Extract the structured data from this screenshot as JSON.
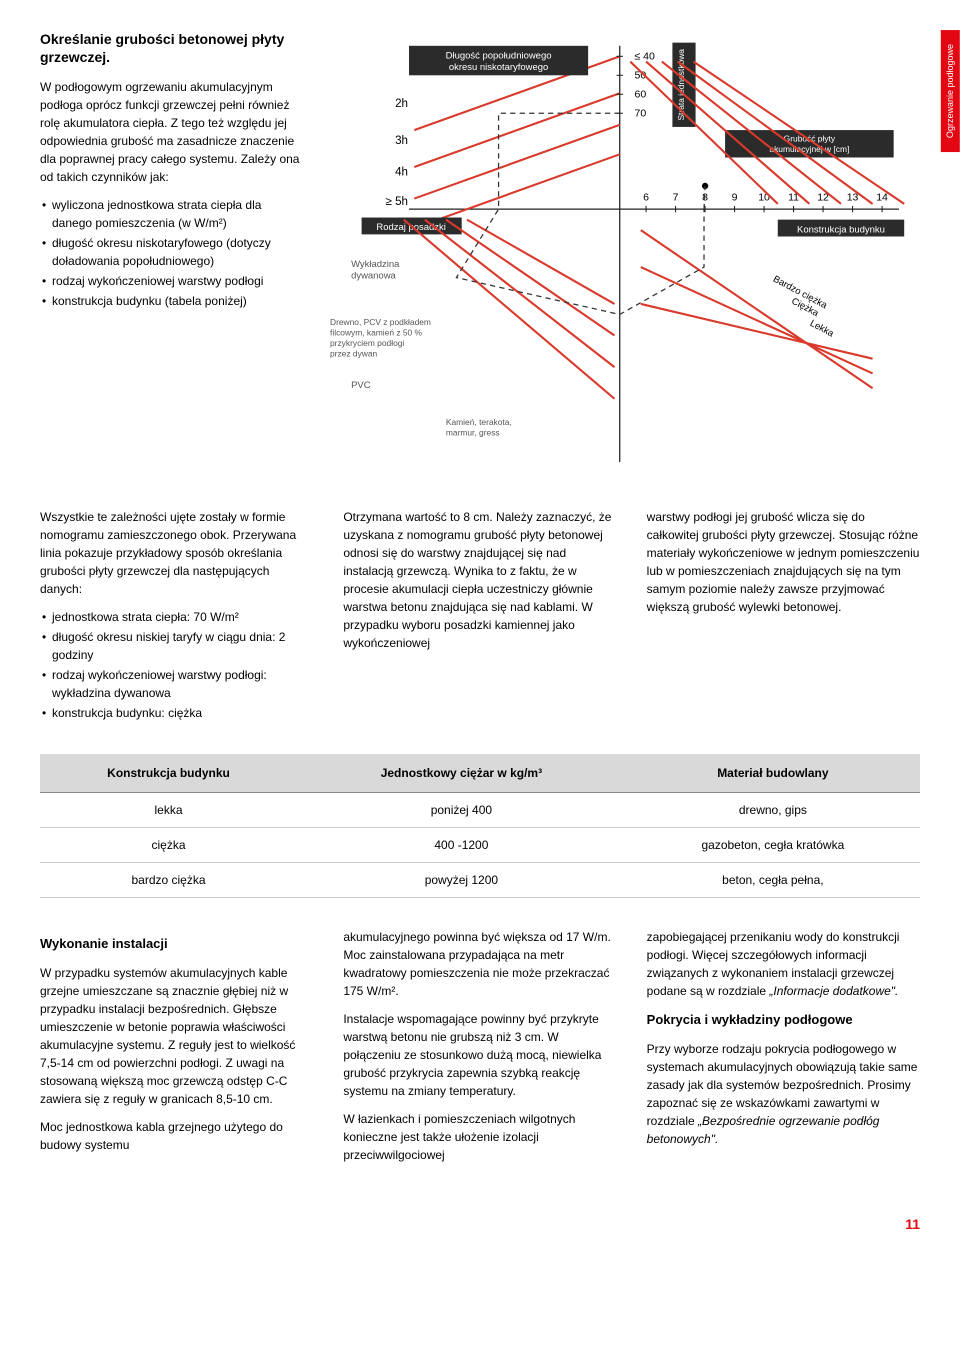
{
  "sideTab": "Ogrzewanie podłogowe",
  "section1": {
    "heading": "Określanie grubości betonowej płyty grzewczej.",
    "p1": "W podłogowym ogrzewaniu akumulacyjnym podłoga oprócz funkcji grzewczej pełni również rolę akumulatora ciepła. Z tego też względu jej odpowiednia grubość ma zasadnicze znaczenie dla poprawnej pracy całego systemu. Zależy ona od takich czynników jak:",
    "bullets1": [
      "wyliczona jednostkowa strata ciepła dla danego pomieszczenia (w W/m²)",
      "długość okresu niskotaryfowego (dotyczy doładowania popołudniowego)",
      "rodzaj wykończeniowej warstwy podłogi",
      "konstrukcja budynku (tabela poniżej)"
    ],
    "p2": "Wszystkie te zależności ujęte zostały w formie nomogramu zamieszczonego obok. Przerywana linia pokazuje przykładowy sposób określania grubości płyty grzewczej dla następujących danych:",
    "bullets2": [
      "jednostkowa strata ciepła: 70 W/m²",
      "długość okresu niskiej taryfy w ciągu dnia: 2 godziny",
      "rodzaj wykończeniowej warstwy podłogi: wykładzina dywanowa",
      "konstrukcja budynku: ciężka"
    ]
  },
  "midCol2": "Otrzymana wartość to 8 cm. Należy zaznaczyć, że uzyskana z nomogramu grubość płyty betonowej odnosi się do warstwy znajdującej się nad instalacją grzewczą. Wynika to z faktu, że w procesie akumulacji ciepła uczestniczy głównie warstwa betonu znajdująca się nad kablami. W przypadku wyboru posadzki kamiennej jako wykończeniowej",
  "midCol3": "warstwy podłogi jej grubość wlicza się do całkowitej grubości płyty grzewczej. Stosując różne materiały wykończeniowe w jednym pomieszczeniu lub w pomieszczeniach znajdujących się na tym samym poziomie należy zawsze przyjmować większą grubość wylewki betonowej.",
  "table": {
    "headers": [
      "Konstrukcja budynku",
      "Jednostkowy ciężar w kg/m³",
      "Materiał budowlany"
    ],
    "rows": [
      [
        "lekka",
        "poniżej 400",
        "drewno, gips"
      ],
      [
        "ciężka",
        "400 -1200",
        "gazobeton, cegła kratówka"
      ],
      [
        "bardzo ciężka",
        "powyżej 1200",
        "beton, cegła pełna,"
      ]
    ]
  },
  "lower": {
    "col1_h": "Wykonanie instalacji",
    "col1_p1": "W przypadku systemów akumulacyjnych kable grzejne umieszczane są znacznie głębiej niż w przypadku instalacji bezpośrednich. Głębsze umieszczenie w betonie poprawia właściwości akumulacyjne systemu. Z reguły jest to wielkość 7,5-14 cm od powierzchni podłogi. Z uwagi na stosowaną większą moc grzewczą odstęp C-C zawiera się z reguły w granicach 8,5-10 cm.",
    "col1_p2": "Moc jednostkowa kabla grzejnego użytego do budowy systemu",
    "col2_p1": "akumulacyjnego powinna być większa od 17 W/m. Moc zainstalowana przypadająca na metr kwadratowy pomieszczenia nie może przekraczać 175 W/m².",
    "col2_p2": "Instalacje wspomagające powinny być przykryte warstwą betonu nie grubszą niż 3 cm. W połączeniu ze stosunkowo dużą mocą, niewielka grubość przykrycia zapewnia szybką reakcję systemu na zmiany temperatury.",
    "col2_p3": "W łazienkach i pomieszczeniach wilgotnych konieczne jest także ułożenie izolacji przeciwwilgociowej",
    "col3_p1_a": "zapobiegającej przenikaniu wody do konstrukcji podłogi. Więcej szczegółowych informacji związanych z wykonaniem instalacji grzewczej podane są w rozdziale ",
    "col3_p1_b": "„Informacje dodatkowe\".",
    "col3_h": "Pokrycia i wykładziny podłogowe",
    "col3_p2_a": "Przy wyborze rodzaju pokrycia podłogowego w systemach akumulacyjnych obowiązują takie same zasady jak dla systemów bezpośrednich. Prosimy zapoznać się ze wskazówkami zawartymi w rozdziale ",
    "col3_p2_b": "„Bezpośrednie ogrzewanie podłóg betonowych\"."
  },
  "nomogram": {
    "labels": {
      "box1": "Długość popołudniowego okresu niskotaryfowego",
      "box2": "Rodzaj posadzki",
      "box3_a": "[W/m²]",
      "box3_b": "Strata jednostkowa",
      "box4": "Grubość płyty akumulacyjnej w [cm]",
      "box5": "Konstrukcja budynku",
      "hours": [
        "2h",
        "3h",
        "4h",
        "≥ 5h"
      ],
      "ytop": [
        "≤ 40",
        "50",
        "60",
        "70"
      ],
      "xright": [
        "6",
        "7",
        "8",
        "9",
        "10",
        "11",
        "12",
        "13",
        "14"
      ],
      "diag_right": [
        "Lekka",
        "Ciężka",
        "Bardzo ciężka"
      ],
      "floor1": "Wykładzina dywanowa",
      "floor2a": "Drewno, PCV z podkładem filcowym, kamień z 50 % przykryciem podłogi przez dywan",
      "floor3": "PVC",
      "floor4": "Kamień, terakota, marmur, gress"
    },
    "colors": {
      "line": "#d93a2b",
      "dash": "#333333",
      "box": "#2b2b2b",
      "boxtext": "#ffffff",
      "axis": "#222222"
    }
  },
  "pageNumber": "11"
}
